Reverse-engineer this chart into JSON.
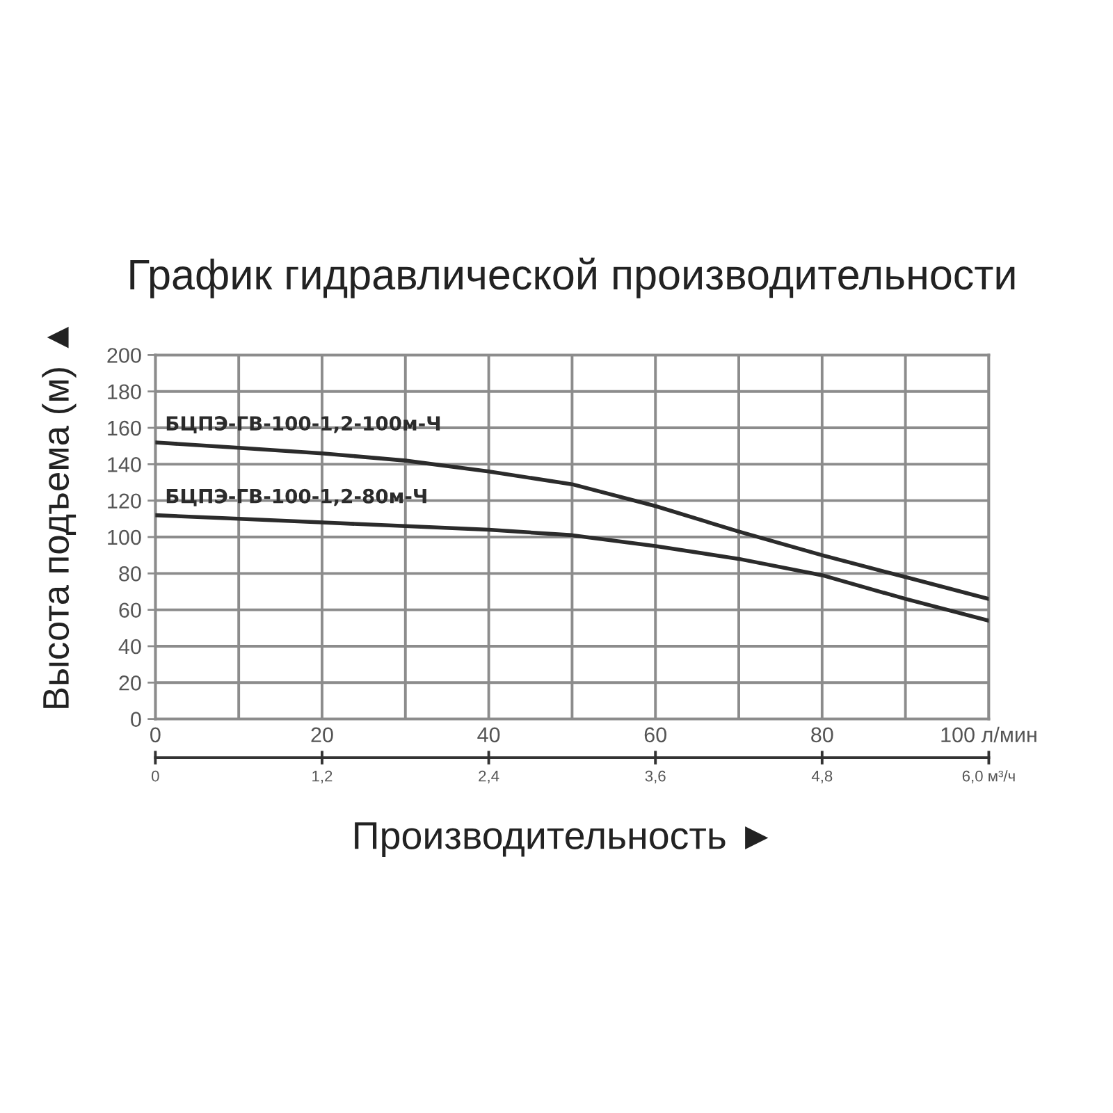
{
  "chart_data": {
    "type": "line",
    "title": "График гидравлической производительности",
    "xlabel": "Производительность ►",
    "ylabel": "Высота подъема (м) ▲",
    "x": [
      0,
      10,
      20,
      30,
      40,
      50,
      60,
      70,
      80,
      90,
      100
    ],
    "series": [
      {
        "name": "БЦПЭ-ГВ-100-1,2-100м-Ч",
        "color": "#2b2b2b",
        "values": [
          152,
          149,
          146,
          142,
          136,
          129,
          117,
          103,
          90,
          78,
          66
        ]
      },
      {
        "name": "БЦПЭ-ГВ-100-1,2-80м-Ч",
        "color": "#2b2b2b",
        "values": [
          112,
          110,
          108,
          106,
          104,
          101,
          95,
          88,
          79,
          66,
          54
        ]
      }
    ],
    "xlim": [
      0,
      100
    ],
    "xticks": [
      0,
      {
        "value": 10,
        "label": null
      },
      20,
      {
        "value": 30,
        "label": null
      },
      40,
      {
        "value": 50,
        "label": null
      },
      60,
      {
        "value": 70,
        "label": null
      },
      80,
      {
        "value": 90,
        "label": null
      },
      {
        "value": 100,
        "label": "100 л/мин"
      }
    ],
    "x2lim": [
      0,
      6.0
    ],
    "x2ticks": [
      0,
      {
        "value": 1.2,
        "label": "1,2"
      },
      {
        "value": 2.4,
        "label": "2,4"
      },
      {
        "value": 3.6,
        "label": "3,6"
      },
      {
        "value": 4.8,
        "label": "4,8"
      },
      {
        "value": 6.0,
        "label": "6,0 м³/ч"
      }
    ],
    "ylim": [
      0,
      200
    ],
    "yticks": [
      0,
      20,
      40,
      60,
      80,
      100,
      120,
      140,
      160,
      180,
      200
    ],
    "grid": true,
    "legend": false,
    "marker": "none",
    "line_style": "solid"
  }
}
